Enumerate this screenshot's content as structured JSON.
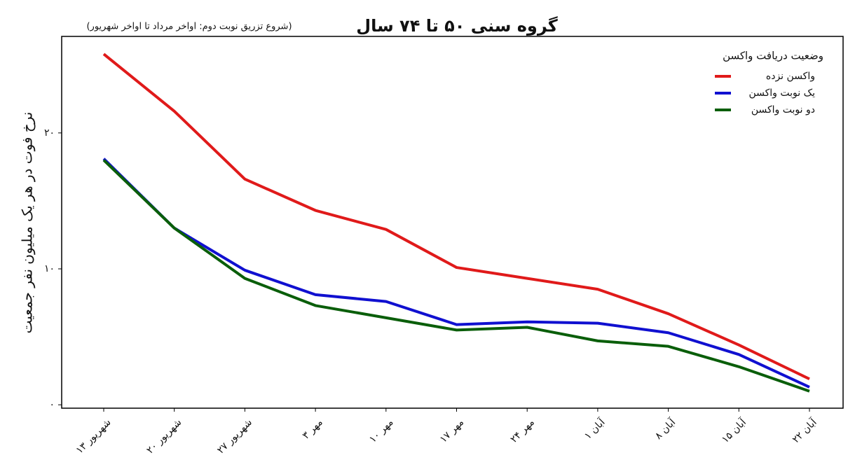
{
  "chart_data": {
    "type": "line",
    "title": "گروه سنی ۵۰ تا ۷۴ سال",
    "subtitle": "(شروع تزریق نوبت دوم: اواخر مرداد تا اواخر شهریور)",
    "y_label": "نرخ فوت در هر یک میلیون نفر جمعیت",
    "legend_title": "وضعیت دریافت واکسن",
    "categories": [
      "۱۳ شهریور",
      "۲۰ شهریور",
      "۲۷ شهریور",
      "۳ مهر",
      "۱۰ مهر",
      "۱۷ مهر",
      "۲۴ مهر",
      "۱ آبان",
      "۸ آبان",
      "۱۵ آبان",
      "۲۲ آبان"
    ],
    "series": [
      {
        "name": "واکسن نزده",
        "color": "#e01a1a",
        "values": [
          25.8,
          21.6,
          16.6,
          14.3,
          12.9,
          10.1,
          9.3,
          8.5,
          6.7,
          4.4,
          1.9
        ]
      },
      {
        "name": "یک نوبت واکسن",
        "color": "#1010d0",
        "values": [
          18.1,
          13.0,
          9.9,
          8.1,
          7.6,
          5.9,
          6.1,
          6.0,
          5.3,
          3.7,
          1.3
        ]
      },
      {
        "name": "دو نوبت واکسن",
        "color": "#0a5e0a",
        "values": [
          18.0,
          13.0,
          9.3,
          7.3,
          6.4,
          5.5,
          5.7,
          4.7,
          4.3,
          2.8,
          1.0
        ]
      }
    ],
    "ylim": [
      -0.25,
      27.1
    ],
    "yticks": [
      {
        "value": 0,
        "label": "۰"
      },
      {
        "value": 10,
        "label": "۱۰"
      },
      {
        "value": 20,
        "label": "۲۰"
      }
    ],
    "legend_position": "top-right"
  }
}
